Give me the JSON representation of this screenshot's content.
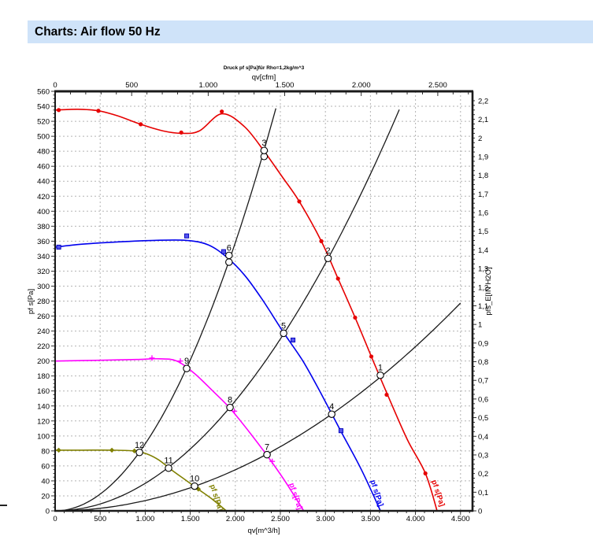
{
  "page": {
    "title": "Charts: Air flow 50 Hz",
    "title_bar_bg": "#cfe3f9"
  },
  "chart_data": {
    "type": "line",
    "title": "Druck pf s[Pa]für Rho=1,2kg/m^3",
    "grid": "on",
    "colors": {
      "red": "#e60000",
      "blue": "#0000ee",
      "magenta": "#ff00ff",
      "olive": "#808000",
      "black": "#1a1a1a",
      "gridline": "#b3b3b3"
    },
    "axes": {
      "top": {
        "label": "qv[cfm]",
        "unit": "cfm",
        "max_cfm": 2727,
        "m3h_per_cfm": 1.699,
        "tick_values": [
          0,
          500,
          1000,
          1500,
          2000,
          2500
        ],
        "tick_labels": [
          "0",
          "500",
          "1.000",
          "1.500",
          "2.000",
          "2.500"
        ],
        "minor_step": 100
      },
      "bottom": {
        "label": "qv[m^3/h]",
        "unit": "m^3/h",
        "max": 4633,
        "tick_values": [
          0,
          500,
          1000,
          1500,
          2000,
          2500,
          3000,
          3500,
          4000,
          4500
        ],
        "tick_labels": [
          "0",
          "500",
          "1.000",
          "1.500",
          "2.000",
          "2.500",
          "3.000",
          "3.500",
          "4.000",
          "4.500"
        ],
        "minor_step": 100
      },
      "left": {
        "label": "pf s[Pa]",
        "unit": "Pa",
        "min": 0,
        "max": 560,
        "tick_step": 20,
        "minor_step": 5,
        "grid_step": 20
      },
      "right": {
        "label": "pfs_E[IN H2O]",
        "unit": "IN H2O",
        "min": 0,
        "max": 2.2,
        "pa_per_inh2o": 248.84,
        "minor_step": 0.025,
        "tick_values": [
          0,
          0.1,
          0.2,
          0.3,
          0.4,
          0.5,
          0.6,
          0.7,
          0.8,
          0.9,
          1,
          1.1,
          1.2,
          1.3,
          1.4,
          1.5,
          1.6,
          1.7,
          1.8,
          1.9,
          2,
          2.1,
          2.2
        ],
        "tick_labels": [
          "0",
          "0,1",
          "0,2",
          "0,3",
          "0,4",
          "0,5",
          "0,6",
          "0,7",
          "0,8",
          "0,9",
          "1",
          "1,1",
          "1,2",
          "1,3",
          "1,4",
          "1,5",
          "1,6",
          "1,7",
          "1,8",
          "1,9",
          "2",
          "2,1",
          "2,2"
        ]
      },
      "vertical_grid_step_m3h": 500
    },
    "series": [
      {
        "name": "fan-curve-1",
        "color_key": "red",
        "marker": "circle",
        "end_label": "pf s[Pa]",
        "end_label_q": 4180,
        "end_label_p": 40,
        "points": [
          [
            0,
            535
          ],
          [
            250,
            536
          ],
          [
            480,
            534
          ],
          [
            700,
            527
          ],
          [
            950,
            516
          ],
          [
            1200,
            507
          ],
          [
            1400,
            504
          ],
          [
            1600,
            507
          ],
          [
            1850,
            530
          ],
          [
            2100,
            513
          ],
          [
            2320,
            480
          ],
          [
            2520,
            446
          ],
          [
            2710,
            413
          ],
          [
            2955,
            360
          ],
          [
            3140,
            310
          ],
          [
            3330,
            258
          ],
          [
            3510,
            206
          ],
          [
            3700,
            152
          ],
          [
            3910,
            95
          ],
          [
            4110,
            50
          ],
          [
            4240,
            0
          ]
        ],
        "markers": [
          [
            40,
            535
          ],
          [
            480,
            534
          ],
          [
            950,
            516
          ],
          [
            1400,
            505
          ],
          [
            1850,
            533
          ],
          [
            2710,
            413
          ],
          [
            2955,
            360
          ],
          [
            3140,
            310
          ],
          [
            3330,
            258
          ],
          [
            3510,
            206
          ],
          [
            3680,
            155
          ],
          [
            4110,
            50
          ]
        ]
      },
      {
        "name": "fan-curve-2",
        "color_key": "blue",
        "marker": "square",
        "end_label": "pf s[Pa]",
        "end_label_q": 3500,
        "end_label_p": 40,
        "points": [
          [
            0,
            352
          ],
          [
            300,
            356
          ],
          [
            700,
            359
          ],
          [
            1100,
            361
          ],
          [
            1460,
            361
          ],
          [
            1700,
            355
          ],
          [
            1900,
            339
          ],
          [
            2100,
            315
          ],
          [
            2300,
            282
          ],
          [
            2536,
            238
          ],
          [
            2750,
            200
          ],
          [
            2950,
            157
          ],
          [
            3173,
            106
          ],
          [
            3400,
            55
          ],
          [
            3611,
            0
          ]
        ],
        "markers": [
          [
            40,
            352
          ],
          [
            1460,
            367
          ],
          [
            1870,
            346
          ],
          [
            2640,
            228
          ],
          [
            3173,
            107
          ]
        ]
      },
      {
        "name": "fan-curve-3",
        "color_key": "magenta",
        "marker": "plus",
        "end_label": "pf s[Pa]",
        "end_label_q": 2600,
        "end_label_p": 36,
        "points": [
          [
            0,
            200
          ],
          [
            500,
            201
          ],
          [
            900,
            202
          ],
          [
            1150,
            203
          ],
          [
            1350,
            200
          ],
          [
            1550,
            183
          ],
          [
            1750,
            160
          ],
          [
            1941,
            137
          ],
          [
            2150,
            106
          ],
          [
            2352,
            74
          ],
          [
            2550,
            40
          ],
          [
            2760,
            0
          ]
        ],
        "markers": [
          [
            1075,
            204
          ],
          [
            1390,
            200
          ],
          [
            1990,
            133
          ],
          [
            2410,
            66
          ]
        ]
      },
      {
        "name": "fan-curve-4",
        "color_key": "olive",
        "marker": "diamond",
        "end_label": "pf s[Pa]",
        "end_label_q": 1720,
        "end_label_p": 34,
        "points": [
          [
            0,
            81
          ],
          [
            300,
            81
          ],
          [
            630,
            81
          ],
          [
            880,
            80
          ],
          [
            1020,
            76
          ],
          [
            1150,
            68
          ],
          [
            1300,
            54
          ],
          [
            1450,
            41
          ],
          [
            1600,
            28
          ],
          [
            1750,
            15
          ],
          [
            1900,
            0
          ]
        ],
        "markers": [
          [
            40,
            81
          ],
          [
            630,
            81
          ],
          [
            880,
            80
          ],
          [
            1590,
            29
          ]
        ]
      }
    ],
    "system_curves": [
      {
        "name": "system-curve-1",
        "k": 8.95e-05,
        "q_end": 2450
      },
      {
        "name": "system-curve-2",
        "k": 3.67e-05,
        "q_end": 3820
      },
      {
        "name": "system-curve-3",
        "k": 1.37e-05,
        "q_end": 4500
      }
    ],
    "operating_points": [
      {
        "label": "1",
        "q": 3610,
        "p": 181
      },
      {
        "label": "2",
        "q": 3030,
        "p": 337
      },
      {
        "label": "3",
        "q": 2320,
        "p": 481,
        "p2": 473
      },
      {
        "label": "4",
        "q": 3070,
        "p": 129
      },
      {
        "label": "5",
        "q": 2536,
        "p": 237
      },
      {
        "label": "6",
        "q": 1930,
        "p": 341,
        "p2": 332
      },
      {
        "label": "7",
        "q": 2352,
        "p": 75
      },
      {
        "label": "8",
        "q": 1941,
        "p": 138
      },
      {
        "label": "9",
        "q": 1460,
        "p": 190
      },
      {
        "label": "10",
        "q": 1548,
        "p": 33
      },
      {
        "label": "11",
        "q": 1259,
        "p": 57
      },
      {
        "label": "12",
        "q": 936,
        "p": 78
      }
    ]
  }
}
